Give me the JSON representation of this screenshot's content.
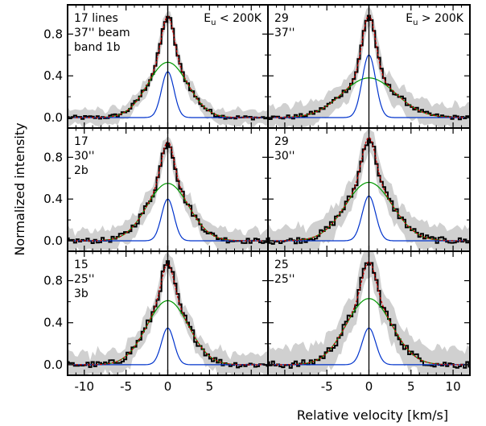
{
  "chart_data": {
    "type": "line",
    "xlabel": "Relative velocity [km/s]",
    "ylabel": "Normalized intensity",
    "xlim": [
      -12,
      12
    ],
    "ylim": [
      -0.1,
      1.08
    ],
    "left_xticks": [
      -10,
      -5,
      0,
      5
    ],
    "right_xticks": [
      -5,
      0,
      5,
      10
    ],
    "yticks": [
      "0.0",
      "0.4",
      "0.8"
    ],
    "yticks_vals": [
      0.0,
      0.4,
      0.8
    ],
    "column_labels": [
      "E<sub>u</sub> < 200K",
      "E<sub>u</sub> > 200K"
    ],
    "column_label_main": [
      "E",
      "E"
    ],
    "column_label_sub": [
      "u",
      "u"
    ],
    "column_label_rest": [
      " < 200K",
      " > 200K"
    ],
    "panels": [
      {
        "row": 0,
        "col": 0,
        "labels": [
          "17 lines",
          "37'' beam",
          "band 1b"
        ],
        "peak": 1.0,
        "narrow_amp": 0.44,
        "narrow_sigma": 0.75,
        "broad_amp": 0.53,
        "broad_sigma": 2.4,
        "noise": 0.02,
        "band_min": 0.03,
        "band_scale": 0.04,
        "offset": 0.0
      },
      {
        "row": 0,
        "col": 1,
        "labels": [
          "29",
          "37''"
        ],
        "peak": 1.02,
        "narrow_amp": 0.6,
        "narrow_sigma": 0.8,
        "broad_amp": 0.38,
        "broad_sigma": 3.2,
        "noise": 0.02,
        "band_min": 0.06,
        "band_scale": 0.05,
        "offset": 0.0
      },
      {
        "row": 1,
        "col": 0,
        "labels": [
          "17",
          "30''",
          "2b"
        ],
        "peak": 1.0,
        "narrow_amp": 0.4,
        "narrow_sigma": 0.75,
        "broad_amp": 0.55,
        "broad_sigma": 2.5,
        "noise": 0.025,
        "band_min": 0.05,
        "band_scale": 0.05,
        "offset": 0.0
      },
      {
        "row": 1,
        "col": 1,
        "labels": [
          "29",
          "30''"
        ],
        "peak": 1.02,
        "narrow_amp": 0.43,
        "narrow_sigma": 0.8,
        "broad_amp": 0.56,
        "broad_sigma": 2.8,
        "noise": 0.03,
        "band_min": 0.08,
        "band_scale": 0.05,
        "offset": 0.0
      },
      {
        "row": 2,
        "col": 0,
        "labels": [
          "15",
          "25''",
          "3b"
        ],
        "peak": 0.98,
        "narrow_amp": 0.35,
        "narrow_sigma": 0.75,
        "broad_amp": 0.61,
        "broad_sigma": 2.5,
        "noise": 0.03,
        "band_min": 0.05,
        "band_scale": 0.06,
        "offset": 0.0
      },
      {
        "row": 2,
        "col": 1,
        "labels": [
          "25",
          "25''"
        ],
        "peak": 1.02,
        "narrow_amp": 0.35,
        "narrow_sigma": 0.8,
        "broad_amp": 0.63,
        "broad_sigma": 2.7,
        "noise": 0.035,
        "band_min": 0.1,
        "band_scale": 0.06,
        "offset": 0.0
      }
    ],
    "series": [
      {
        "color": "#000000"
      },
      {
        "color": "#cc0000"
      },
      {
        "color": "#009900"
      },
      {
        "color": "#0033cc"
      }
    ],
    "band_color": "#d0d0d0",
    "grid": false
  }
}
